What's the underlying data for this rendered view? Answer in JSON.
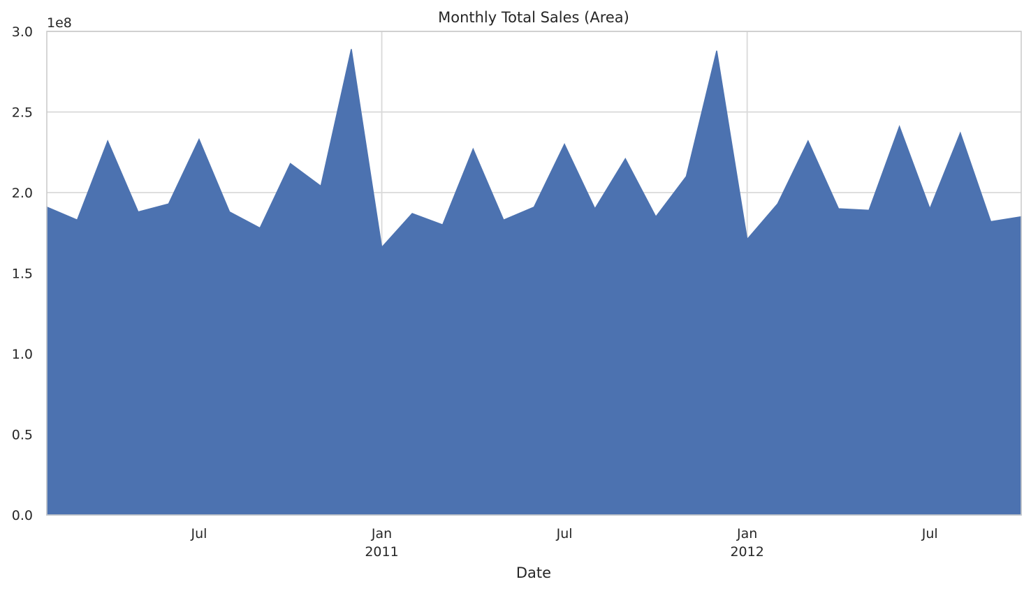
{
  "chart_data": {
    "type": "area",
    "title": "Monthly Total Sales (Area)",
    "xlabel": "Date",
    "ylabel": "",
    "y_offset_label": "1e8",
    "ylim": [
      0,
      3.0
    ],
    "xlim": [
      "2010-02",
      "2012-10"
    ],
    "grid": true,
    "legend": "none",
    "fill_color": "#4c72b0",
    "background": "#ffffff",
    "grid_color": "#d9d9d9",
    "y_ticks": [
      {
        "value": 0.0,
        "label": "0.0"
      },
      {
        "value": 0.5,
        "label": "0.5"
      },
      {
        "value": 1.0,
        "label": "1.0"
      },
      {
        "value": 1.5,
        "label": "1.5"
      },
      {
        "value": 2.0,
        "label": "2.0"
      },
      {
        "value": 2.5,
        "label": "2.5"
      },
      {
        "value": 3.0,
        "label": "3.0"
      }
    ],
    "x_ticks": [
      {
        "date": "2010-07",
        "label": "Jul",
        "sublabel": "",
        "major": false
      },
      {
        "date": "2011-01",
        "label": "Jan",
        "sublabel": "2011",
        "major": true
      },
      {
        "date": "2011-07",
        "label": "Jul",
        "sublabel": "",
        "major": false
      },
      {
        "date": "2012-01",
        "label": "Jan",
        "sublabel": "2012",
        "major": true
      },
      {
        "date": "2012-07",
        "label": "Jul",
        "sublabel": "",
        "major": false
      }
    ],
    "x": [
      "2010-02",
      "2010-03",
      "2010-04",
      "2010-05",
      "2010-06",
      "2010-07",
      "2010-08",
      "2010-09",
      "2010-10",
      "2010-11",
      "2010-12",
      "2011-01",
      "2011-02",
      "2011-03",
      "2011-04",
      "2011-05",
      "2011-06",
      "2011-07",
      "2011-08",
      "2011-09",
      "2011-10",
      "2011-11",
      "2011-12",
      "2012-01",
      "2012-02",
      "2012-03",
      "2012-04",
      "2012-05",
      "2012-06",
      "2012-07",
      "2012-08",
      "2012-09",
      "2012-10"
    ],
    "values": [
      1.91,
      1.83,
      2.32,
      1.88,
      1.93,
      2.33,
      1.88,
      1.78,
      2.18,
      2.04,
      2.89,
      1.66,
      1.87,
      1.8,
      2.27,
      1.83,
      1.91,
      2.3,
      1.9,
      2.21,
      1.85,
      2.1,
      2.88,
      1.71,
      1.93,
      2.32,
      1.9,
      1.89,
      2.41,
      1.9,
      2.37,
      1.82,
      1.85
    ]
  }
}
